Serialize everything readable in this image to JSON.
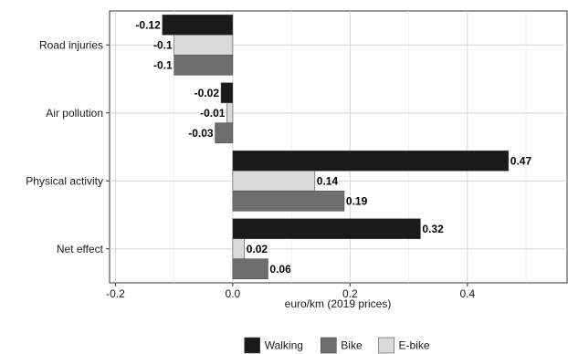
{
  "chart_data": {
    "type": "bar",
    "orientation": "horizontal",
    "categories": [
      "Road injuries",
      "Air pollution",
      "Physical activity",
      "Net effect"
    ],
    "series": [
      {
        "name": "Walking",
        "color": "#1a1a1a",
        "values": [
          -0.12,
          -0.02,
          0.47,
          0.32
        ],
        "labels": [
          "-0.12",
          "-0.02",
          "0.47",
          "0.32"
        ]
      },
      {
        "name": "E-bike",
        "color": "#d9d9d9",
        "values": [
          -0.1,
          -0.01,
          0.14,
          0.02
        ],
        "labels": [
          "-0.1",
          "-0.01",
          "0.14",
          "0.02"
        ]
      },
      {
        "name": "Bike",
        "color": "#6e6e6e",
        "values": [
          -0.1,
          -0.03,
          0.19,
          0.06
        ],
        "labels": [
          "-0.1",
          "-0.03",
          "0.19",
          "0.06"
        ]
      }
    ],
    "xlabel": "euro/km (2019 prices)",
    "ylabel": "",
    "xlim": [
      -0.21,
      0.57
    ],
    "xticks": [
      -0.2,
      0.0,
      0.2,
      0.4
    ],
    "xtick_labels": [
      "-0.2",
      "0.0",
      "0.2",
      "0.4"
    ],
    "grid": true,
    "legend": {
      "position": "bottom",
      "items": [
        {
          "name": "Walking",
          "color": "#1a1a1a"
        },
        {
          "name": "Bike",
          "color": "#6e6e6e"
        },
        {
          "name": "E-bike",
          "color": "#d9d9d9"
        }
      ]
    }
  }
}
